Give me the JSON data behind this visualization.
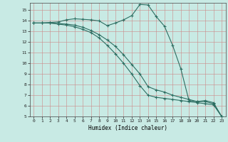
{
  "title": "",
  "xlabel": "Humidex (Indice chaleur)",
  "bg_color": "#c8eae4",
  "line_color": "#2d6e62",
  "grid_major_color": "#aaccc6",
  "grid_minor_color": "#b8ddd8",
  "xlim": [
    -0.5,
    23.5
  ],
  "ylim": [
    5,
    15.7
  ],
  "xticks": [
    0,
    1,
    2,
    3,
    4,
    5,
    6,
    7,
    8,
    9,
    10,
    11,
    12,
    13,
    14,
    15,
    16,
    17,
    18,
    19,
    20,
    21,
    22,
    23
  ],
  "yticks": [
    5,
    6,
    7,
    8,
    9,
    10,
    11,
    12,
    13,
    14,
    15
  ],
  "series": [
    {
      "x": [
        0,
        1,
        2,
        3,
        4,
        5,
        6,
        7,
        8,
        9,
        10,
        11,
        12,
        13,
        14,
        15,
        16,
        17,
        18,
        19,
        20,
        21,
        22,
        23
      ],
      "y": [
        13.8,
        13.8,
        13.85,
        13.9,
        14.1,
        14.2,
        14.15,
        14.1,
        14.0,
        13.55,
        13.8,
        14.1,
        14.5,
        15.55,
        15.5,
        14.4,
        13.5,
        11.7,
        9.5,
        6.5,
        6.4,
        6.5,
        6.3,
        5.0
      ]
    },
    {
      "x": [
        0,
        1,
        2,
        3,
        4,
        5,
        6,
        7,
        8,
        9,
        10,
        11,
        12,
        13,
        14,
        15,
        16,
        17,
        18,
        19,
        20,
        21,
        22,
        23
      ],
      "y": [
        13.8,
        13.8,
        13.8,
        13.75,
        13.7,
        13.6,
        13.4,
        13.1,
        12.7,
        12.2,
        11.6,
        10.8,
        9.9,
        9.0,
        7.8,
        7.5,
        7.3,
        7.0,
        6.8,
        6.6,
        6.4,
        6.4,
        6.2,
        5.0
      ]
    },
    {
      "x": [
        0,
        1,
        2,
        3,
        4,
        5,
        6,
        7,
        8,
        9,
        10,
        11,
        12,
        13,
        14,
        15,
        16,
        17,
        18,
        19,
        20,
        21,
        22,
        23
      ],
      "y": [
        13.8,
        13.8,
        13.8,
        13.7,
        13.6,
        13.45,
        13.2,
        12.9,
        12.4,
        11.7,
        10.9,
        10.0,
        9.0,
        7.9,
        7.0,
        6.8,
        6.7,
        6.6,
        6.5,
        6.4,
        6.3,
        6.2,
        6.1,
        5.0
      ]
    }
  ]
}
